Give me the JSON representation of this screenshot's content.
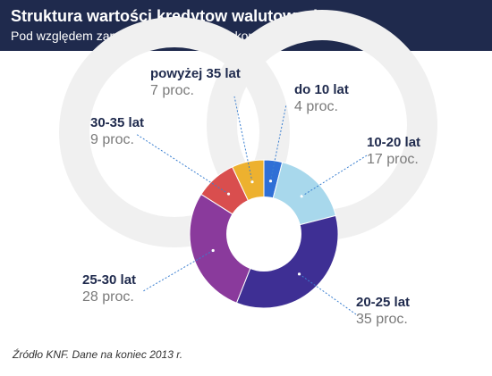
{
  "header": {
    "title": "Struktura wartości kredytow walutowych",
    "subtitle": "Pod względem zapadalności kredytu na koniec 2013 r."
  },
  "chart_data": {
    "type": "pie",
    "donut": true,
    "categories": [
      "do 10 lat",
      "10-20 lat",
      "20-25 lat",
      "25-30 lat",
      "30-35 lat",
      "powyżej 35 lat"
    ],
    "values": [
      4,
      17,
      35,
      28,
      9,
      7
    ],
    "value_labels": [
      "4 proc.",
      "17 proc.",
      "35 proc.",
      "28 proc.",
      "9 proc.",
      "7 proc."
    ],
    "colors": [
      "#2f6fd6",
      "#a8d8ec",
      "#3e2f94",
      "#8a3a9c",
      "#d94e4e",
      "#edb12f"
    ]
  },
  "footer": {
    "source": "Źródło KNF. Dane na koniec 2013 r."
  }
}
